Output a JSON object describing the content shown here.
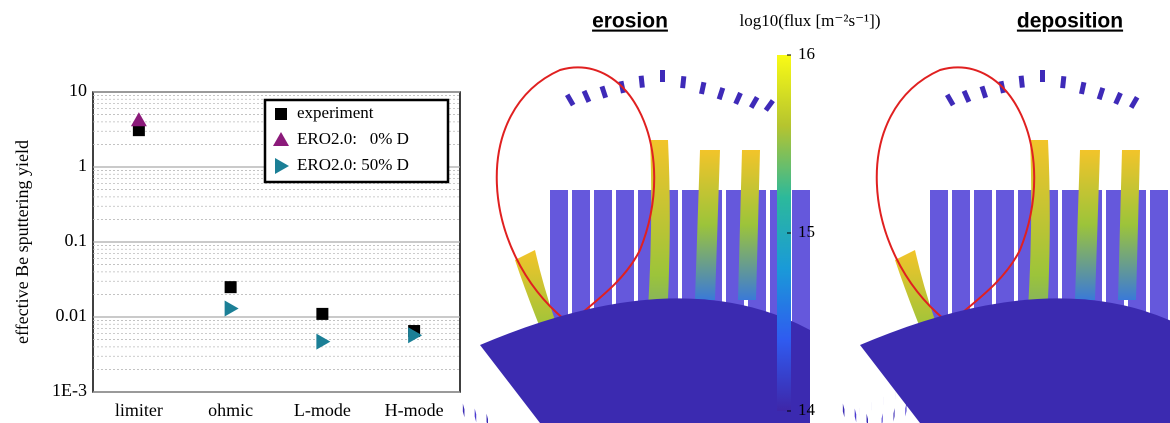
{
  "chart_data": {
    "type": "scatter",
    "y_label": "effective Be sputtering yield",
    "categories": [
      "limiter",
      "ohmic",
      "L-mode",
      "H-mode"
    ],
    "series": [
      {
        "name": "experiment",
        "color": "#000000",
        "marker": "square",
        "values": [
          3.1,
          0.025,
          0.011,
          0.0065
        ]
      },
      {
        "name": "ERO2.0:   0% D",
        "color": "#8b1a7a",
        "marker": "triangle-up",
        "values": [
          4.2,
          null,
          null,
          null
        ]
      },
      {
        "name": "ERO2.0: 50% D",
        "color": "#1b7f96",
        "marker": "triangle-right",
        "values": [
          null,
          0.013,
          0.0047,
          0.0057
        ]
      }
    ],
    "log_y": true,
    "ylim": [
      0.001,
      10
    ],
    "yticks": [
      {
        "value": 0.001,
        "label": "1E-3"
      },
      0.01,
      0.1,
      1,
      10
    ],
    "grid": true,
    "legend": "upper right"
  },
  "renderings": {
    "left_title": "erosion",
    "right_title": "deposition"
  },
  "colorbar": {
    "label": "log10(flux [m⁻²s⁻¹])",
    "lim": [
      14,
      16
    ],
    "ticks": [
      14,
      15,
      16
    ]
  }
}
